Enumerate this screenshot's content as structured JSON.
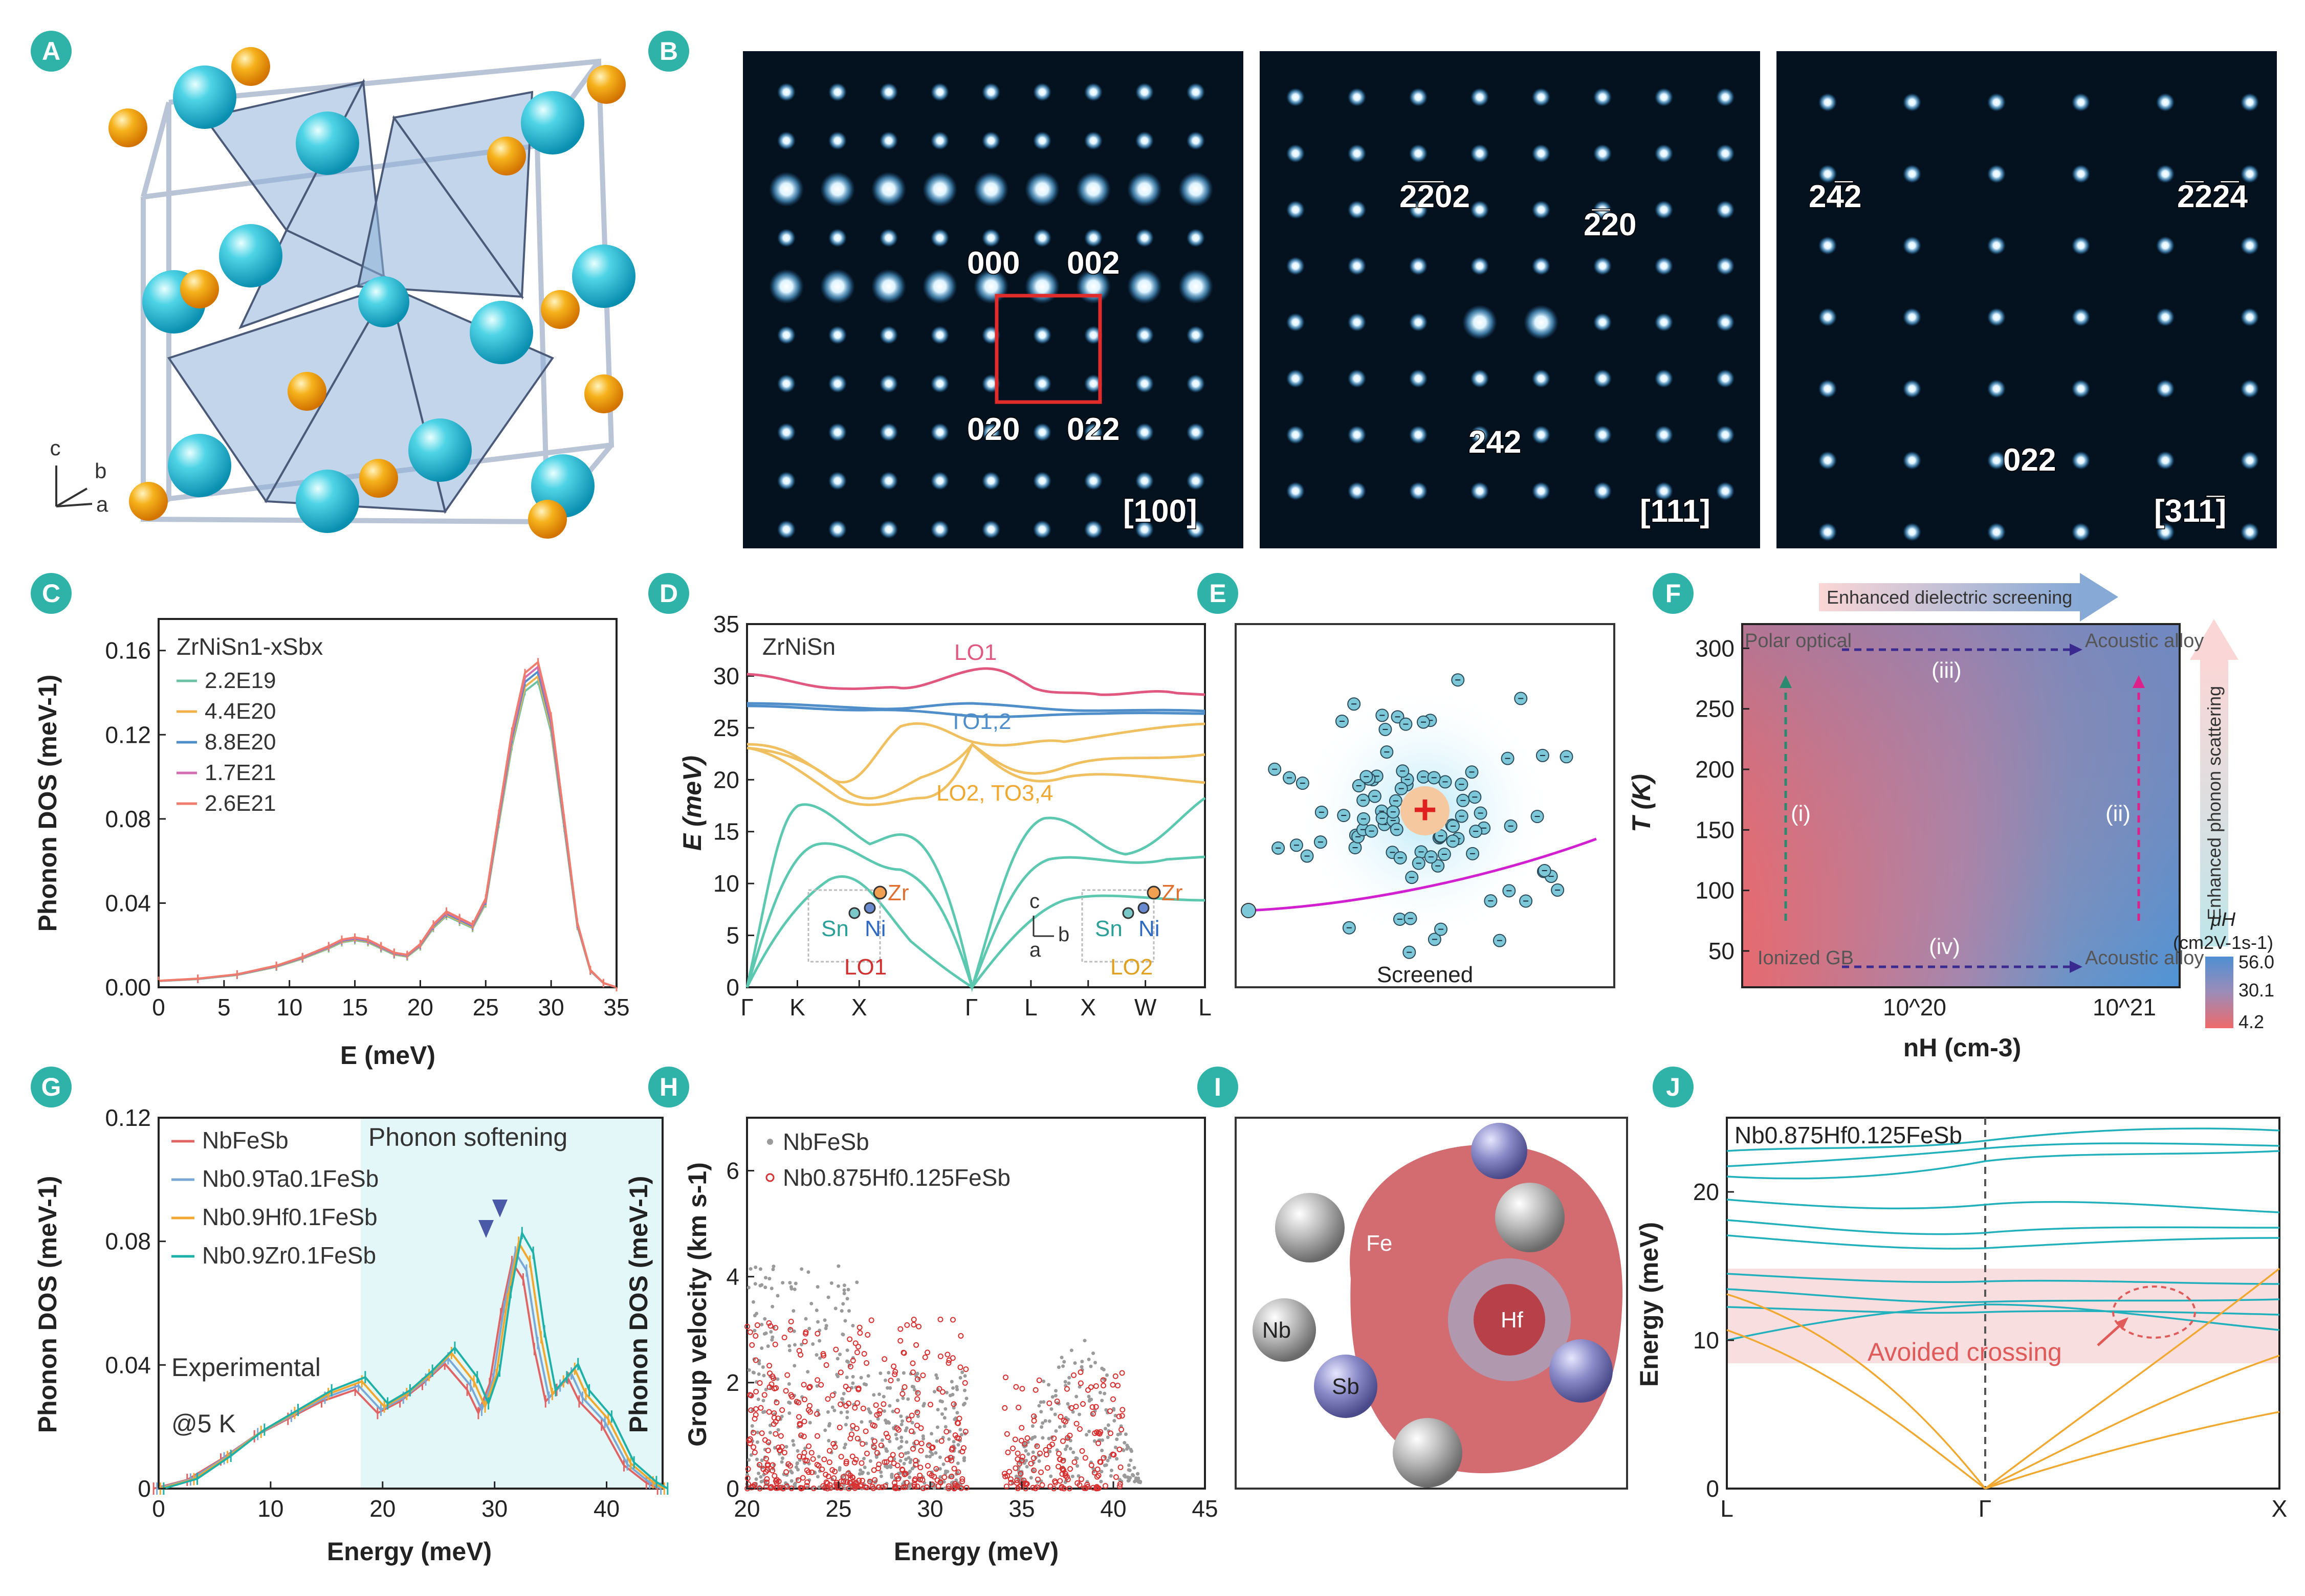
{
  "panels": {
    "A": {
      "label": "A",
      "axes": [
        "c",
        "b",
        "a"
      ]
    },
    "B": {
      "label": "B",
      "images": [
        {
          "zone": "[100]",
          "spots": [
            "000",
            "002",
            "020",
            "022"
          ]
        },
        {
          "zone": "[111]",
          "spots": [
            "2̅2̅02",
            "2̅20",
            "242"
          ]
        },
        {
          "zone": "[311̅]",
          "spots": [
            "24̅2",
            "2̅22̅4",
            "022"
          ]
        }
      ]
    },
    "C": {
      "label": "C"
    },
    "D": {
      "label": "D"
    },
    "E": {
      "label": "E",
      "caption": "Screened"
    },
    "F": {
      "label": "F"
    },
    "G": {
      "label": "G"
    },
    "H": {
      "label": "H"
    },
    "I": {
      "label": "I",
      "atoms": [
        "Fe",
        "Hf",
        "Nb",
        "Sb"
      ]
    },
    "J": {
      "label": "J"
    }
  },
  "colors": {
    "teal": "#1fa8a0",
    "accent_label": "#2fb3a8",
    "red": "#e05a5a",
    "blue": "#4f8ec9",
    "orange": "#f0a830",
    "pink": "#e0577f"
  },
  "chart_data": [
    {
      "panel": "C",
      "type": "line",
      "title": "ZrNiSn1-xSbx",
      "xlabel": "E (meV)",
      "ylabel": "Phonon DOS (meV-1)",
      "xlim": [
        0,
        35
      ],
      "ylim": [
        0,
        0.175
      ],
      "xticks": [
        0,
        5,
        10,
        15,
        20,
        25,
        30,
        35
      ],
      "yticks": [
        "0.00",
        "0.04",
        "0.08",
        "0.12",
        "0.16"
      ],
      "series": [
        {
          "name": "2.2E19",
          "color": "#6cc0a4"
        },
        {
          "name": "4.4E20",
          "color": "#f2b04a"
        },
        {
          "name": "8.8E20",
          "color": "#4f8ec9"
        },
        {
          "name": "1.7E21",
          "color": "#d36db0"
        },
        {
          "name": "2.6E21",
          "color": "#ef7c6c"
        }
      ],
      "x": [
        0,
        3,
        6,
        9,
        11,
        13,
        14,
        15,
        16,
        17,
        18,
        19,
        20,
        21,
        22,
        23,
        24,
        25,
        26,
        27,
        28,
        29,
        30,
        31,
        32,
        33,
        34,
        35
      ],
      "y": [
        0.003,
        0.004,
        0.006,
        0.01,
        0.014,
        0.019,
        0.022,
        0.023,
        0.022,
        0.019,
        0.016,
        0.015,
        0.02,
        0.029,
        0.035,
        0.032,
        0.029,
        0.041,
        0.08,
        0.118,
        0.145,
        0.15,
        0.125,
        0.078,
        0.03,
        0.008,
        0.002,
        0.0
      ]
    },
    {
      "panel": "D",
      "type": "line",
      "title": "ZrNiSn",
      "ylabel": "E (meV)",
      "xticks": [
        "Γ",
        "K",
        "X",
        "Γ",
        "L",
        "X",
        "W",
        "L"
      ],
      "ylim": [
        0,
        35
      ],
      "yticks": [
        0,
        5,
        10,
        15,
        20,
        25,
        30,
        35
      ],
      "annotations": [
        "LO1",
        "TO1,2",
        "LO2, TO3,4"
      ],
      "insets": [
        {
          "atoms": [
            "Zr",
            "Sn",
            "Ni"
          ],
          "mode": "LO1"
        },
        {
          "atoms": [
            "Zr",
            "Sn",
            "Ni"
          ],
          "mode": "LO2"
        }
      ],
      "inset_axes": [
        "c",
        "a",
        "b"
      ]
    },
    {
      "panel": "F",
      "type": "heatmap",
      "xlabel": "nH (cm-3)",
      "ylabel": "T (K)",
      "xticks": [
        "10^20",
        "10^21"
      ],
      "yticks": [
        50,
        100,
        150,
        200,
        250,
        300
      ],
      "ylim": [
        20,
        320
      ],
      "colorbar": {
        "title": "μH",
        "unit": "(cm2V-1s-1)",
        "ticks": [
          "56.0",
          "30.1",
          "4.2"
        ]
      },
      "regions": [
        "Polar optical",
        "Acoustic alloy",
        "Ionized GB",
        "Acoustic alloy"
      ],
      "arrows": [
        "(i)",
        "(ii)",
        "(iii)",
        "(iv)"
      ],
      "top_label": "Enhanced dielectric screening",
      "side_label": "Enhanced phonon scattering"
    },
    {
      "panel": "G",
      "type": "line",
      "xlabel": "Energy (meV)",
      "ylabel": "Phonon DOS (meV-1)",
      "xlim": [
        0,
        45
      ],
      "ylim": [
        0,
        0.12
      ],
      "xticks": [
        0,
        10,
        20,
        30,
        40
      ],
      "yticks": [
        "0",
        "0.04",
        "0.08",
        "0.12"
      ],
      "annotations": [
        "Phonon softening",
        "Experimental",
        "@5 K"
      ],
      "series": [
        {
          "name": "NbFeSb",
          "color": "#e06464"
        },
        {
          "name": "Nb0.9Ta0.1FeSb",
          "color": "#7aa8d6"
        },
        {
          "name": "Nb0.9Hf0.1FeSb",
          "color": "#f0a830"
        },
        {
          "name": "Nb0.9Zr0.1FeSb",
          "color": "#1fb0a8"
        }
      ],
      "x": [
        0,
        3,
        6,
        9,
        12,
        15,
        18,
        20,
        22,
        24,
        26,
        28,
        29,
        30,
        31,
        32,
        33,
        34,
        35,
        36,
        37,
        38,
        40,
        42,
        44,
        45
      ],
      "y": [
        0.0,
        0.003,
        0.01,
        0.018,
        0.024,
        0.03,
        0.034,
        0.026,
        0.03,
        0.036,
        0.043,
        0.034,
        0.026,
        0.036,
        0.06,
        0.078,
        0.072,
        0.048,
        0.03,
        0.034,
        0.038,
        0.03,
        0.022,
        0.008,
        0.002,
        0.0
      ]
    },
    {
      "panel": "H",
      "type": "scatter",
      "xlabel": "Energy (meV)",
      "ylabel": "Group velocity (km s-1)",
      "ylabel2": "Phonon DOS (meV-1)",
      "xlim": [
        20,
        45
      ],
      "ylim": [
        0,
        7
      ],
      "xticks": [
        20,
        25,
        30,
        35,
        40,
        45
      ],
      "yticks": [
        0,
        2,
        4,
        6
      ],
      "series": [
        {
          "name": "NbFeSb",
          "color": "#9a9a9a"
        },
        {
          "name": "Nb0.875Hf0.125FeSb",
          "color": "#d83030"
        }
      ]
    },
    {
      "panel": "J",
      "type": "line",
      "title": "Nb0.875Hf0.125FeSb",
      "ylabel": "Energy (meV)",
      "xticks": [
        "L",
        "Γ",
        "X"
      ],
      "ylim": [
        0,
        25
      ],
      "yticks": [
        0,
        10,
        20
      ],
      "annotations": [
        "Avoided crossing"
      ]
    }
  ]
}
